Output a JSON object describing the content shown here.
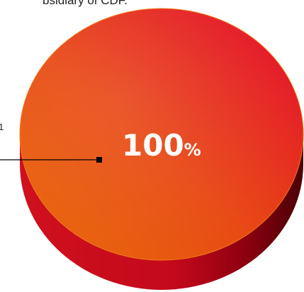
{
  "caption": {
    "top_text": "bsidiary of CDF.",
    "left_text": "1"
  },
  "chart_data": {
    "type": "pie",
    "style": "3d",
    "slices": [
      {
        "value": 100
      }
    ],
    "value_label": "100",
    "value_unit": "%",
    "colors": {
      "top_light": "#e85a10",
      "top_dark": "#e30b2b",
      "side": "#b3001b",
      "side_shadow": "#6a0008",
      "leader_line": "#000000"
    }
  }
}
